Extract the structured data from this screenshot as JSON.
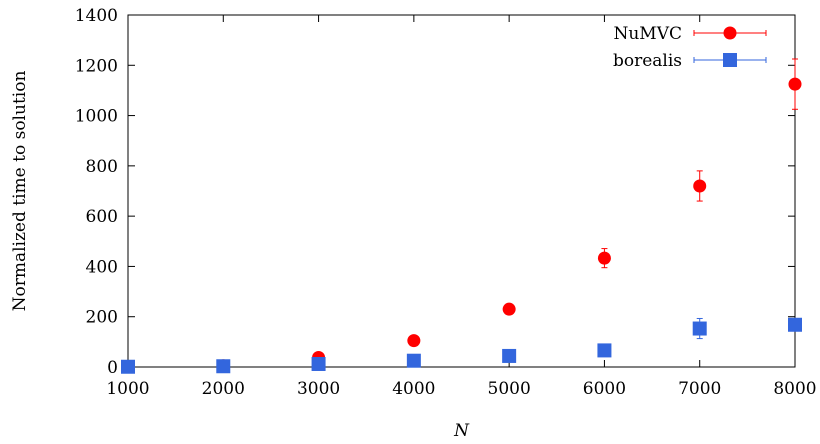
{
  "chart_data": {
    "type": "scatter",
    "xlabel": "N",
    "ylabel": "Normalized time to solution",
    "xlim": [
      1000,
      8000
    ],
    "ylim": [
      0,
      1400
    ],
    "x_ticks": [
      "1000",
      "2000",
      "3000",
      "4000",
      "5000",
      "6000",
      "7000",
      "8000"
    ],
    "y_ticks": [
      "0",
      "200",
      "400",
      "600",
      "800",
      "1000",
      "1200",
      "1400"
    ],
    "grid": false,
    "legend_position": "top-right",
    "series": [
      {
        "name": "NuMVC",
        "color": "#ff0000",
        "marker": "circle",
        "points": [
          {
            "x": 1000,
            "y": 1,
            "err": 0
          },
          {
            "x": 2000,
            "y": 5,
            "err": 0
          },
          {
            "x": 3000,
            "y": 38,
            "err": 4
          },
          {
            "x": 4000,
            "y": 105,
            "err": 8
          },
          {
            "x": 5000,
            "y": 230,
            "err": 12
          },
          {
            "x": 6000,
            "y": 433,
            "err": 38
          },
          {
            "x": 7000,
            "y": 720,
            "err": 60
          },
          {
            "x": 8000,
            "y": 1125,
            "err": 100
          }
        ]
      },
      {
        "name": "borealis",
        "color": "#3366dd",
        "marker": "square",
        "points": [
          {
            "x": 1000,
            "y": 1,
            "err": 0
          },
          {
            "x": 2000,
            "y": 3,
            "err": 0
          },
          {
            "x": 3000,
            "y": 12,
            "err": 2
          },
          {
            "x": 4000,
            "y": 25,
            "err": 4
          },
          {
            "x": 5000,
            "y": 44,
            "err": 6
          },
          {
            "x": 6000,
            "y": 66,
            "err": 8
          },
          {
            "x": 7000,
            "y": 153,
            "err": 40
          },
          {
            "x": 8000,
            "y": 168,
            "err": 20
          }
        ]
      }
    ]
  }
}
